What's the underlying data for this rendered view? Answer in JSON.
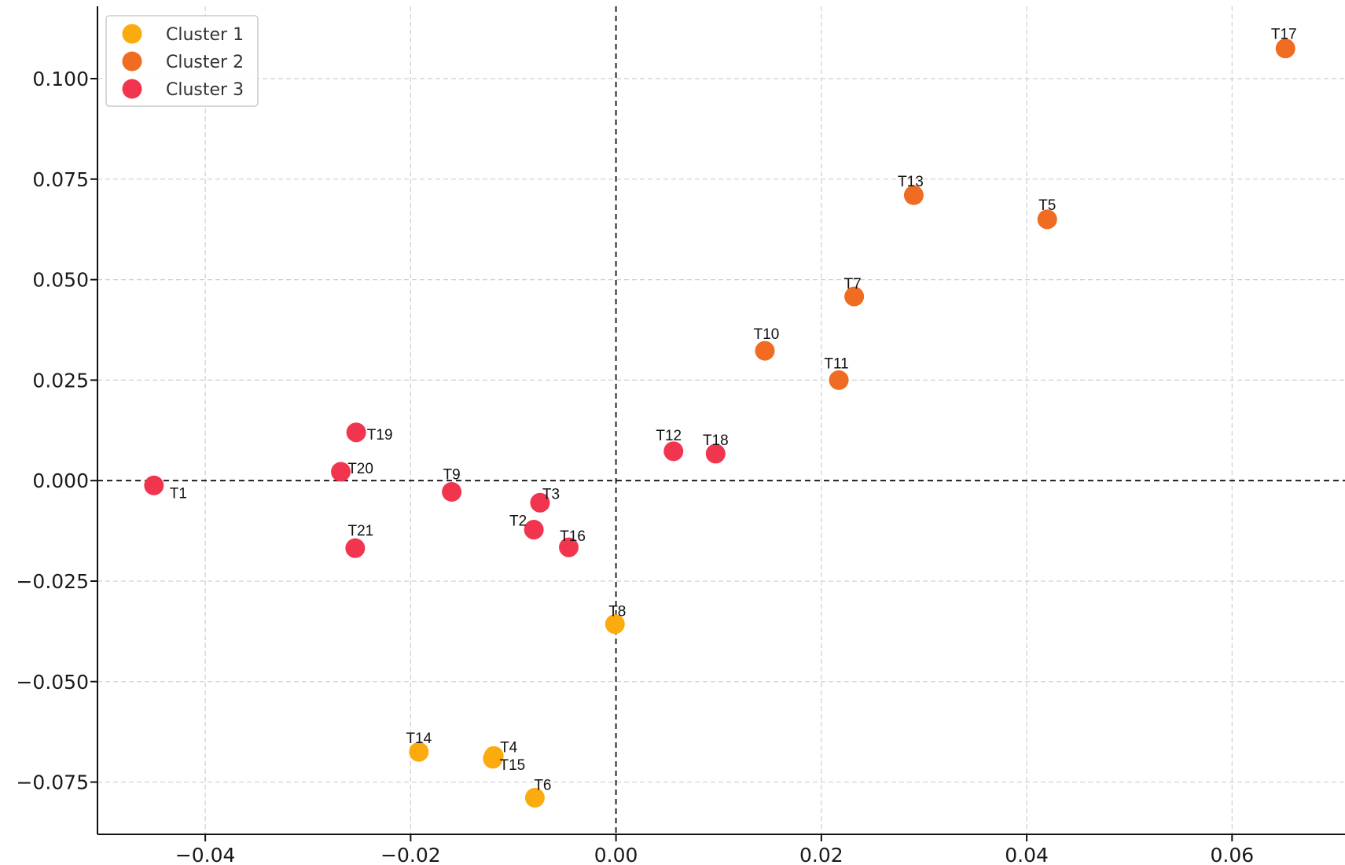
{
  "chart_data": {
    "type": "scatter",
    "title": "",
    "xlabel": "",
    "ylabel": "",
    "xlim": [
      -0.0505,
      0.071
    ],
    "ylim": [
      -0.088,
      0.118
    ],
    "x_ticks": [
      -0.04,
      -0.02,
      0.0,
      0.02,
      0.04,
      0.06
    ],
    "x_tick_labels": [
      "−0.04",
      "−0.02",
      "0.00",
      "0.02",
      "0.04",
      "0.06"
    ],
    "y_ticks": [
      0.1,
      0.075,
      0.05,
      0.025,
      0.0,
      -0.025,
      -0.05,
      -0.075
    ],
    "y_tick_labels": [
      "0.100",
      "0.075",
      "0.050",
      "0.025",
      "0.000",
      "−0.025",
      "−0.050",
      "−0.075"
    ],
    "grid": true,
    "zero_lines": true,
    "legend_position": "top-left",
    "series": [
      {
        "name": "Cluster 1",
        "color": "#FBAB0E",
        "points": [
          {
            "label": "T14",
            "x": -0.0192,
            "y": -0.0675
          },
          {
            "label": "T4",
            "x": -0.0119,
            "y": -0.0685
          },
          {
            "label": "T15",
            "x": -0.012,
            "y": -0.0692
          },
          {
            "label": "T6",
            "x": -0.0079,
            "y": -0.0789
          },
          {
            "label": "T8",
            "x": -0.0001,
            "y": -0.0357
          }
        ]
      },
      {
        "name": "Cluster 2",
        "color": "#F06C22",
        "points": [
          {
            "label": "T17",
            "x": 0.0652,
            "y": 0.1075
          },
          {
            "label": "T13",
            "x": 0.029,
            "y": 0.071
          },
          {
            "label": "T5",
            "x": 0.042,
            "y": 0.065
          },
          {
            "label": "T7",
            "x": 0.0232,
            "y": 0.0458
          },
          {
            "label": "T10",
            "x": 0.0145,
            "y": 0.0323
          },
          {
            "label": "T11",
            "x": 0.0217,
            "y": 0.025
          }
        ]
      },
      {
        "name": "Cluster 3",
        "color": "#F2354F",
        "points": [
          {
            "label": "T1",
            "x": -0.045,
            "y": -0.0012
          },
          {
            "label": "T19",
            "x": -0.0253,
            "y": 0.012
          },
          {
            "label": "T20",
            "x": -0.0268,
            "y": 0.0022
          },
          {
            "label": "T9",
            "x": -0.016,
            "y": -0.0028
          },
          {
            "label": "T3",
            "x": -0.0074,
            "y": -0.0055
          },
          {
            "label": "T2",
            "x": -0.008,
            "y": -0.0122
          },
          {
            "label": "T16",
            "x": -0.0046,
            "y": -0.0166
          },
          {
            "label": "T21",
            "x": -0.0254,
            "y": -0.0168
          },
          {
            "label": "T12",
            "x": 0.0056,
            "y": 0.0073
          },
          {
            "label": "T18",
            "x": 0.0097,
            "y": 0.0067
          }
        ]
      }
    ]
  }
}
